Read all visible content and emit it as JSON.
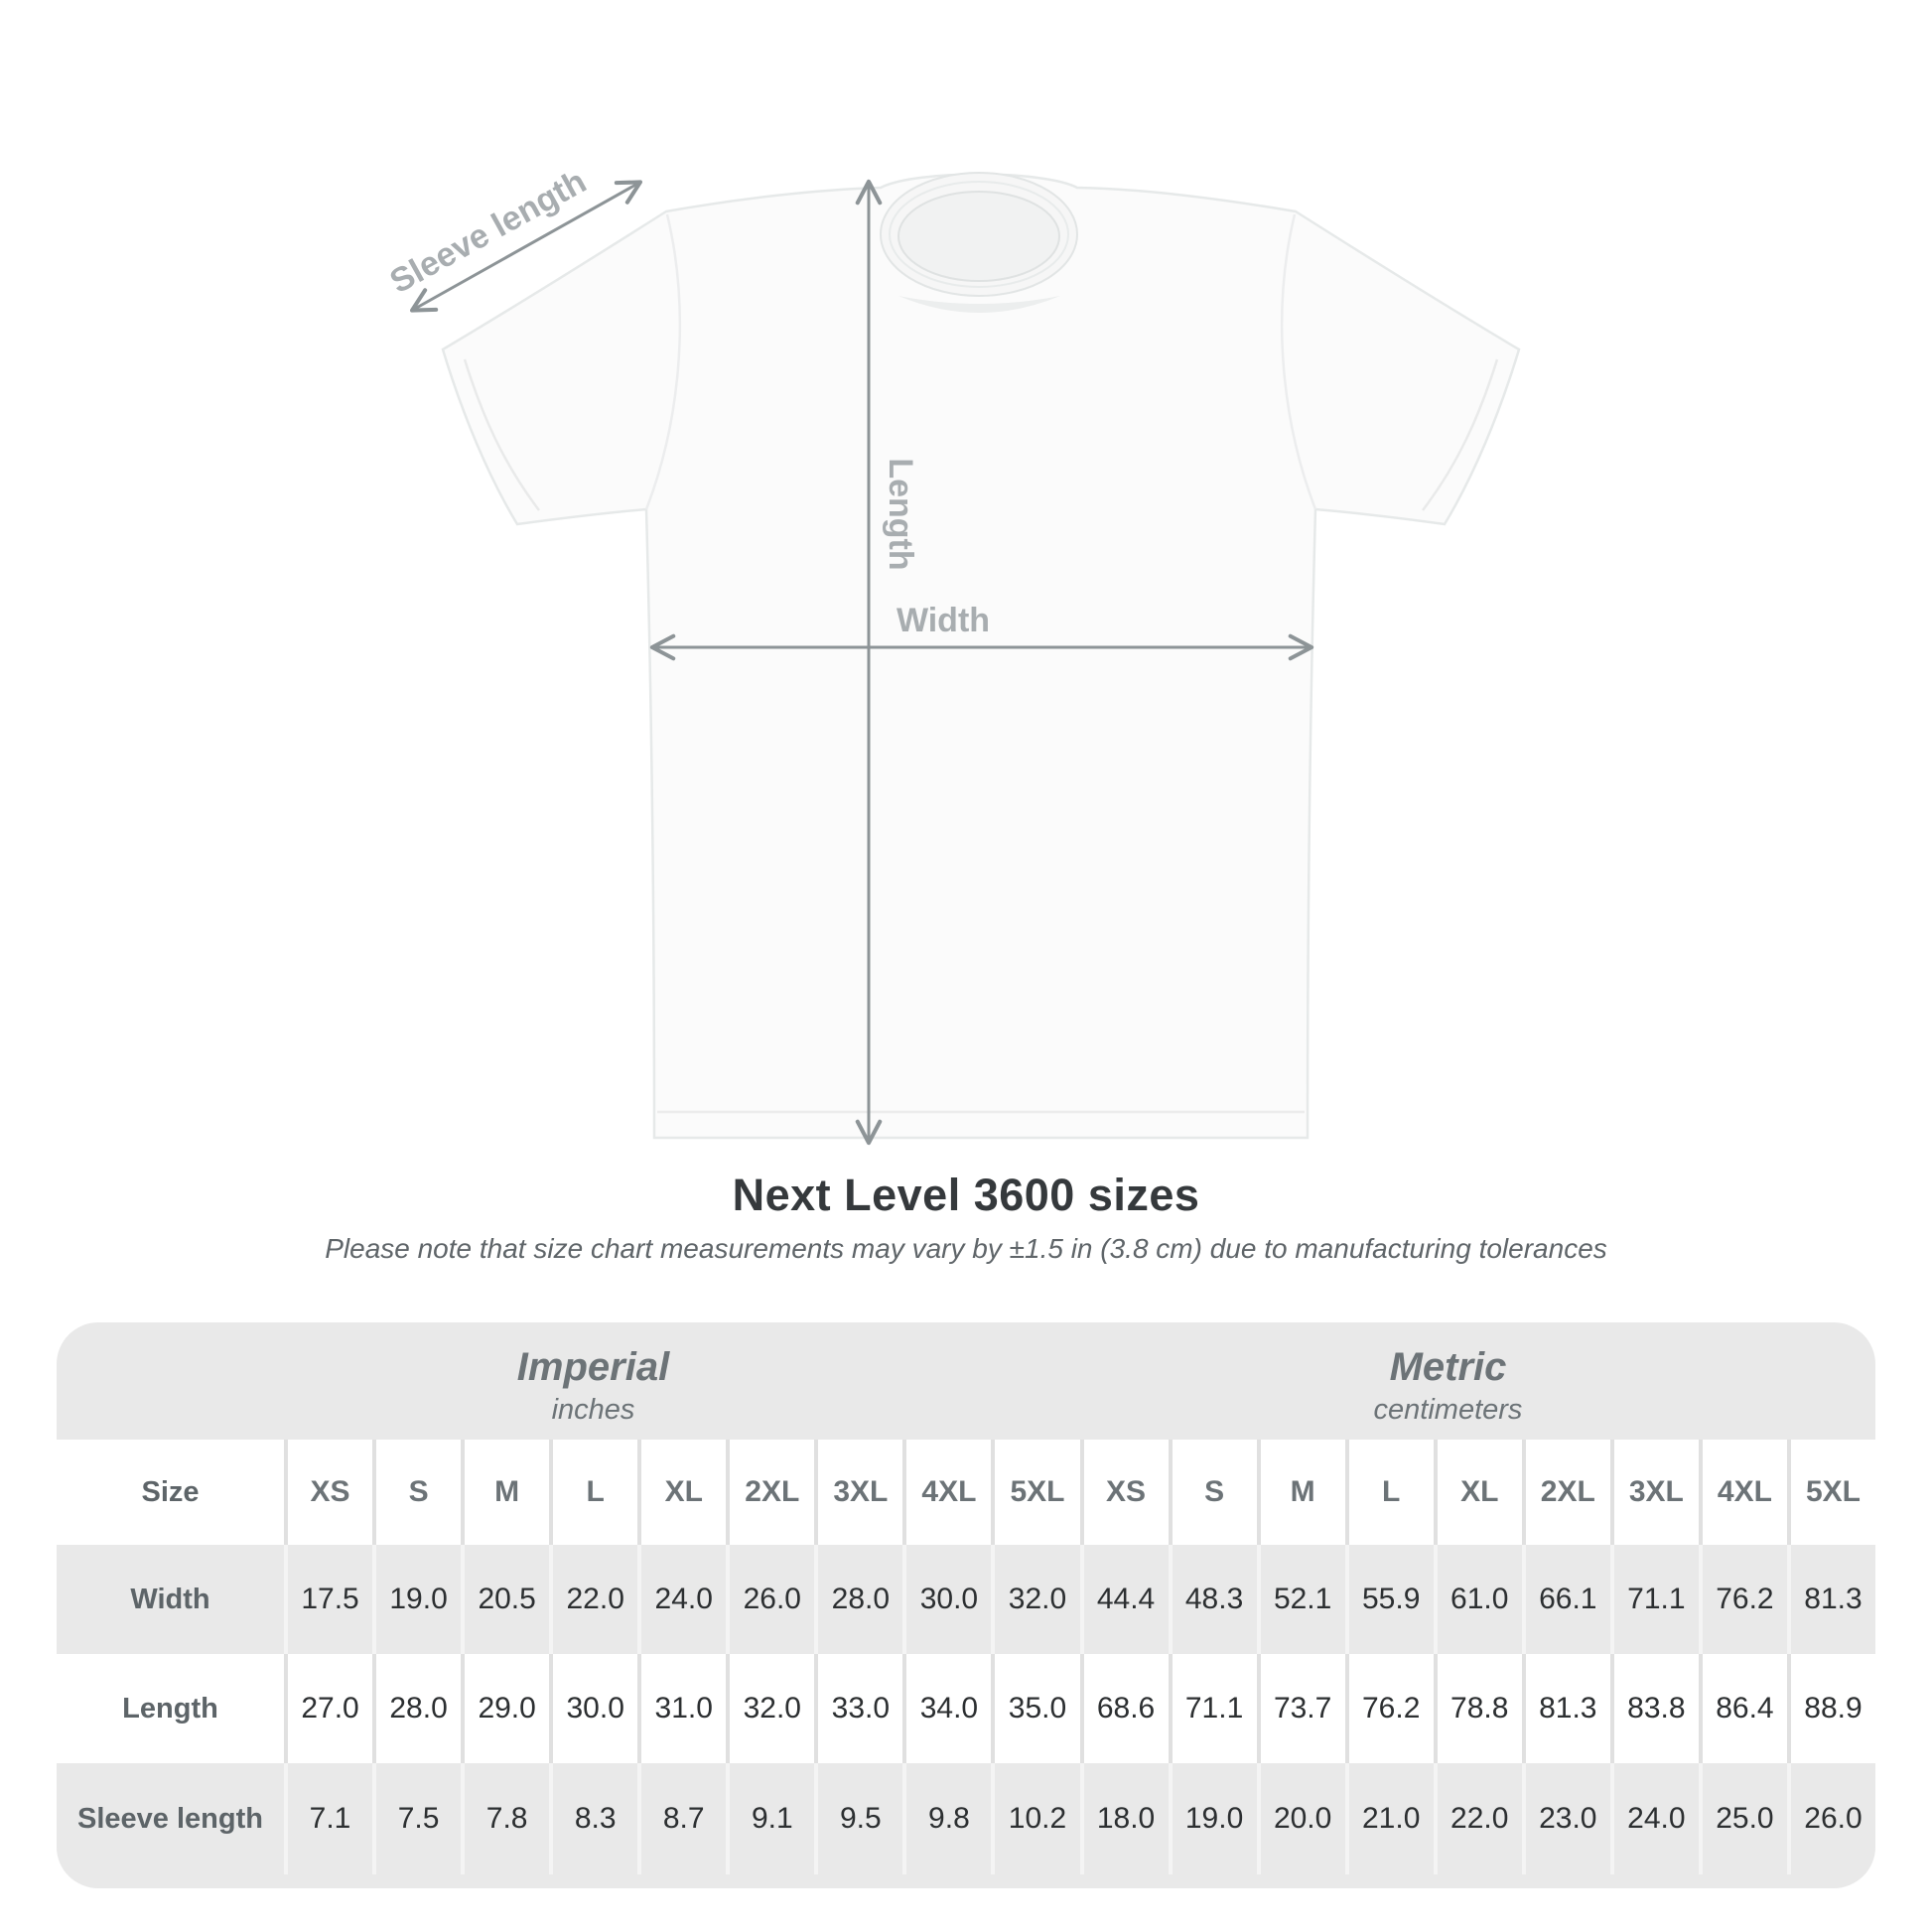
{
  "diagram": {
    "sleeve_label": "Sleeve length",
    "length_label": "Length",
    "width_label": "Width"
  },
  "title": "Next Level 3600 sizes",
  "subtitle": "Please note that size chart measurements may vary by ±1.5 in (3.8 cm) due to manufacturing tolerances",
  "table": {
    "unit_groups": [
      {
        "label": "Imperial",
        "sub": "inches"
      },
      {
        "label": "Metric",
        "sub": "centimeters"
      }
    ],
    "size_header": {
      "label": "Size",
      "imperial": [
        "XS",
        "S",
        "M",
        "L",
        "XL",
        "2XL",
        "3XL",
        "4XL",
        "5XL"
      ],
      "metric": [
        "XS",
        "S",
        "M",
        "L",
        "XL",
        "2XL",
        "3XL",
        "4XL",
        "5XL"
      ]
    },
    "rows": [
      {
        "label": "Width",
        "imperial": [
          "17.5",
          "19.0",
          "20.5",
          "22.0",
          "24.0",
          "26.0",
          "28.0",
          "30.0",
          "32.0"
        ],
        "metric": [
          "44.4",
          "48.3",
          "52.1",
          "55.9",
          "61.0",
          "66.1",
          "71.1",
          "76.2",
          "81.3"
        ]
      },
      {
        "label": "Length",
        "imperial": [
          "27.0",
          "28.0",
          "29.0",
          "30.0",
          "31.0",
          "32.0",
          "33.0",
          "34.0",
          "35.0"
        ],
        "metric": [
          "68.6",
          "71.1",
          "73.7",
          "76.2",
          "78.8",
          "81.3",
          "83.8",
          "86.4",
          "88.9"
        ]
      },
      {
        "label": "Sleeve length",
        "imperial": [
          "7.1",
          "7.5",
          "7.8",
          "8.3",
          "8.7",
          "9.1",
          "9.5",
          "9.8",
          "10.2"
        ],
        "metric": [
          "18.0",
          "19.0",
          "20.0",
          "21.0",
          "22.0",
          "23.0",
          "24.0",
          "25.0",
          "26.0"
        ]
      }
    ]
  },
  "colors": {
    "arrow_gray": "#8d9497",
    "diagram_label_gray": "#a8adb0",
    "table_bg": "#e9e9e9"
  }
}
